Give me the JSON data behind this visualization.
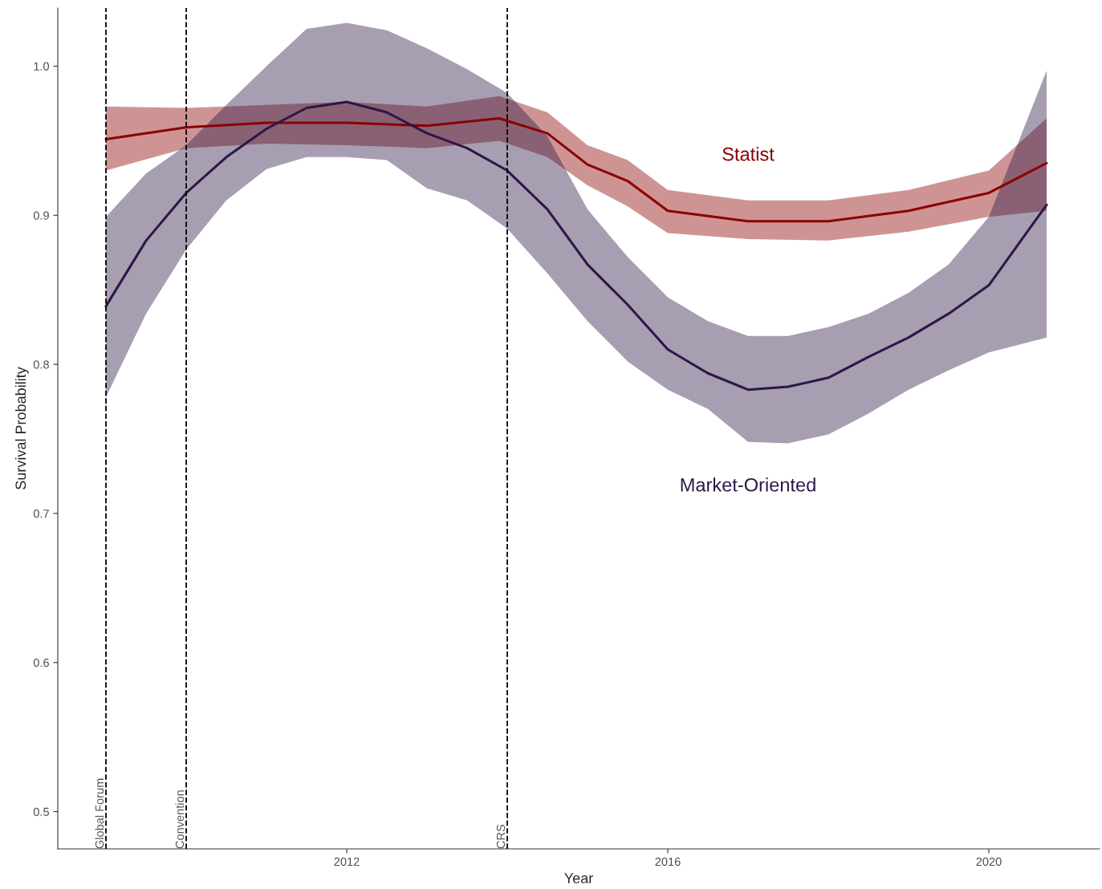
{
  "chart_data": {
    "type": "line",
    "xlabel": "Year",
    "ylabel": "Survival Probability",
    "xlim": [
      2008.4,
      2021.38
    ],
    "ylim": [
      0.475,
      1.039
    ],
    "xticks": [
      2012,
      2016,
      2020
    ],
    "yticks": [
      {
        "value": 0.5,
        "label": "0.5"
      },
      {
        "value": 0.6,
        "label": "0.6"
      },
      {
        "value": 0.7,
        "label": "0.7"
      },
      {
        "value": 0.8,
        "label": "0.8"
      },
      {
        "value": 0.9,
        "label": "0.9"
      },
      {
        "value": 1.0,
        "label": "1.0"
      }
    ],
    "grid": false,
    "legend": false,
    "line_style": "solid",
    "marker": "none",
    "series": [
      {
        "name": "Statist",
        "color": "#8b0000",
        "x": [
          2009,
          2010,
          2011,
          2012,
          2013,
          2013.9,
          2014.5,
          2015,
          2015.5,
          2016,
          2017,
          2018,
          2019,
          2020,
          2020.72
        ],
        "values": [
          0.951,
          0.959,
          0.962,
          0.962,
          0.96,
          0.965,
          0.955,
          0.934,
          0.923,
          0.903,
          0.896,
          0.896,
          0.903,
          0.915,
          0.935
        ],
        "upper": [
          0.973,
          0.972,
          0.974,
          0.976,
          0.973,
          0.98,
          0.969,
          0.947,
          0.937,
          0.917,
          0.91,
          0.91,
          0.917,
          0.93,
          0.965
        ],
        "lower": [
          0.93,
          0.945,
          0.948,
          0.947,
          0.945,
          0.95,
          0.939,
          0.92,
          0.906,
          0.888,
          0.884,
          0.883,
          0.889,
          0.899,
          0.903
        ]
      },
      {
        "name": "Market-Oriented",
        "color": "#2d1748",
        "x": [
          2009,
          2009.5,
          2010,
          2010.5,
          2011,
          2011.5,
          2012,
          2012.5,
          2013,
          2013.5,
          2014,
          2014.5,
          2015,
          2015.5,
          2016,
          2016.5,
          2017,
          2017.5,
          2018,
          2018.5,
          2019,
          2019.5,
          2020,
          2020.72
        ],
        "values": [
          0.839,
          0.883,
          0.915,
          0.939,
          0.958,
          0.972,
          0.976,
          0.969,
          0.955,
          0.945,
          0.93,
          0.904,
          0.867,
          0.84,
          0.81,
          0.794,
          0.783,
          0.785,
          0.791,
          0.805,
          0.818,
          0.834,
          0.853,
          0.907
        ],
        "upper": [
          0.899,
          0.928,
          0.947,
          0.974,
          1.0,
          1.025,
          1.029,
          1.024,
          1.012,
          0.998,
          0.982,
          0.953,
          0.904,
          0.872,
          0.845,
          0.829,
          0.819,
          0.819,
          0.825,
          0.834,
          0.848,
          0.867,
          0.899,
          0.997
        ],
        "lower": [
          0.778,
          0.834,
          0.877,
          0.91,
          0.931,
          0.939,
          0.939,
          0.937,
          0.918,
          0.91,
          0.891,
          0.861,
          0.829,
          0.802,
          0.783,
          0.77,
          0.748,
          0.747,
          0.753,
          0.767,
          0.783,
          0.796,
          0.808,
          0.818
        ]
      }
    ],
    "ref_lines": [
      {
        "axis": "x",
        "value": 2009,
        "label": "Global Forum",
        "color": "#000000",
        "line_style": "dashed"
      },
      {
        "axis": "x",
        "value": 2010,
        "label": "Convention",
        "color": "#000000",
        "line_style": "dashed"
      },
      {
        "axis": "x",
        "value": 2014,
        "label": "CRS",
        "color": "#000000",
        "line_style": "dashed"
      }
    ]
  }
}
